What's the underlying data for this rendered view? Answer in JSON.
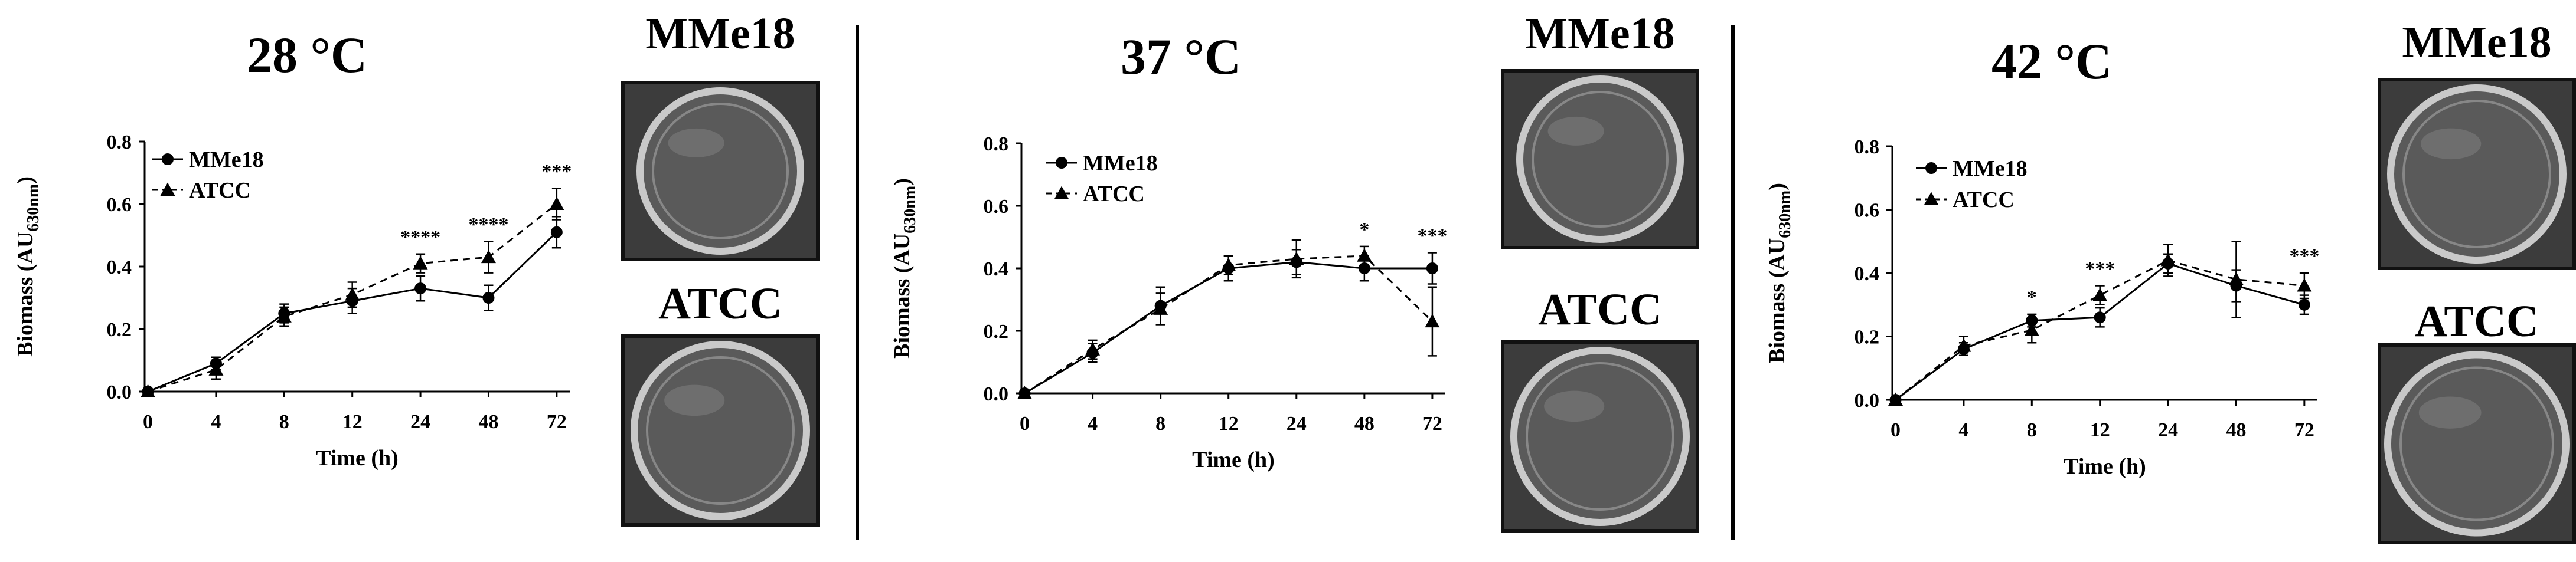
{
  "figure": {
    "divider_color": "#000000",
    "photo_colors": {
      "frame": "#111111",
      "background": "#3c3c3c",
      "dish_edge": "#c9c9c9",
      "dish_inner": "#5a5a5a"
    },
    "panels": [
      {
        "title": "28 °C",
        "photos": [
          {
            "label": "MMe18",
            "icon": "petri-dish-photo"
          },
          {
            "label": "ATCC",
            "icon": "petri-dish-photo"
          }
        ]
      },
      {
        "title": "37 °C",
        "photos": [
          {
            "label": "MMe18",
            "icon": "petri-dish-photo"
          },
          {
            "label": "ATCC",
            "icon": "petri-dish-photo"
          }
        ]
      },
      {
        "title": "42 °C",
        "photos": [
          {
            "label": "MMe18",
            "icon": "petri-dish-photo"
          },
          {
            "label": "ATCC",
            "icon": "petri-dish-photo"
          }
        ]
      }
    ]
  },
  "chart_data": [
    {
      "type": "line",
      "title": "28 °C",
      "xlabel": "Time (h)",
      "ylabel_main": "Biomass (AU",
      "ylabel_sub": "630nm",
      "ylabel_close": ")",
      "categories": [
        "0",
        "4",
        "8",
        "12",
        "24",
        "48",
        "72"
      ],
      "ylim": [
        0,
        0.8
      ],
      "yticks": [
        "0.0",
        "0.2",
        "0.4",
        "0.6",
        "0.8"
      ],
      "legend_position": "top-left",
      "series": [
        {
          "name": "MMe18",
          "marker": "circle",
          "dash": "solid",
          "values": [
            0.0,
            0.09,
            0.25,
            0.29,
            0.33,
            0.3,
            0.51
          ],
          "errors": [
            0.0,
            0.02,
            0.03,
            0.04,
            0.04,
            0.04,
            0.05
          ]
        },
        {
          "name": "ATCC",
          "marker": "triangle",
          "dash": "dashed",
          "values": [
            0.0,
            0.07,
            0.24,
            0.31,
            0.41,
            0.43,
            0.6
          ],
          "errors": [
            0.0,
            0.03,
            0.03,
            0.04,
            0.03,
            0.05,
            0.05
          ]
        }
      ],
      "annotations": [
        {
          "category": "24",
          "text": "****"
        },
        {
          "category": "48",
          "text": "****"
        },
        {
          "category": "72",
          "text": "***"
        }
      ]
    },
    {
      "type": "line",
      "title": "37 °C",
      "xlabel": "Time (h)",
      "ylabel_main": "Biomass (AU",
      "ylabel_sub": "630nm",
      "ylabel_close": ")",
      "categories": [
        "0",
        "4",
        "8",
        "12",
        "24",
        "48",
        "72"
      ],
      "ylim": [
        0,
        0.8
      ],
      "yticks": [
        "0.0",
        "0.2",
        "0.4",
        "0.6",
        "0.8"
      ],
      "legend_position": "top-left",
      "series": [
        {
          "name": "MMe18",
          "marker": "circle",
          "dash": "solid",
          "values": [
            0.0,
            0.13,
            0.28,
            0.4,
            0.42,
            0.4,
            0.4
          ],
          "errors": [
            0.0,
            0.03,
            0.06,
            0.04,
            0.04,
            0.04,
            0.05
          ]
        },
        {
          "name": "ATCC",
          "marker": "triangle",
          "dash": "dashed",
          "values": [
            0.0,
            0.14,
            0.27,
            0.41,
            0.43,
            0.44,
            0.23
          ],
          "errors": [
            0.0,
            0.03,
            0.05,
            0.03,
            0.06,
            0.03,
            0.11
          ]
        }
      ],
      "annotations": [
        {
          "category": "48",
          "text": "*"
        },
        {
          "category": "72",
          "text": "***"
        }
      ]
    },
    {
      "type": "line",
      "title": "42 °C",
      "xlabel": "Time (h)",
      "ylabel_main": "Biomass (AU",
      "ylabel_sub": "630nm",
      "ylabel_close": ")",
      "categories": [
        "0",
        "4",
        "8",
        "12",
        "24",
        "48",
        "72"
      ],
      "ylim": [
        0,
        0.8
      ],
      "yticks": [
        "0.0",
        "0.2",
        "0.4",
        "0.6",
        "0.8"
      ],
      "legend_position": "top-left",
      "series": [
        {
          "name": "MMe18",
          "marker": "circle",
          "dash": "solid",
          "values": [
            0.0,
            0.16,
            0.25,
            0.26,
            0.43,
            0.36,
            0.3
          ],
          "errors": [
            0.0,
            0.02,
            0.02,
            0.03,
            0.03,
            0.05,
            0.03
          ]
        },
        {
          "name": "ATCC",
          "marker": "triangle",
          "dash": "dashed",
          "values": [
            0.0,
            0.17,
            0.22,
            0.33,
            0.44,
            0.38,
            0.36
          ],
          "errors": [
            0.0,
            0.03,
            0.04,
            0.03,
            0.05,
            0.12,
            0.04
          ]
        }
      ],
      "annotations": [
        {
          "category": "8",
          "text": "*"
        },
        {
          "category": "12",
          "text": "***"
        },
        {
          "category": "72",
          "text": "***"
        }
      ]
    }
  ]
}
